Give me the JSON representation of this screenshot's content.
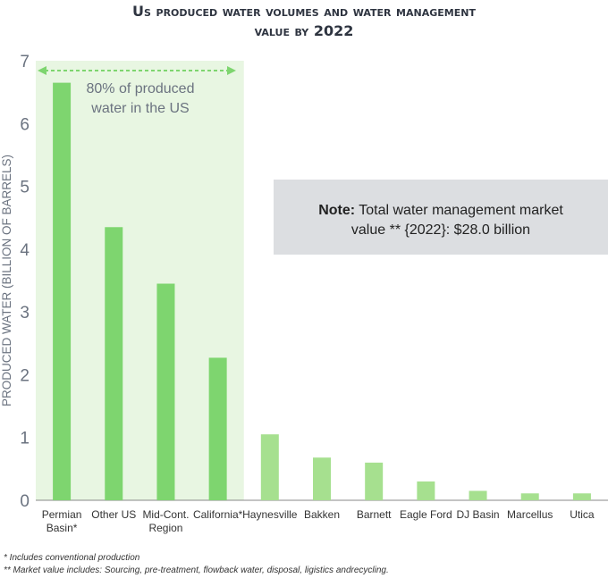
{
  "title": {
    "line1": "Us produced water volumes and water management",
    "line2": "value by 2022"
  },
  "highlight_label": {
    "line1": "80% of produced",
    "line2": "water in the US"
  },
  "note": {
    "bold": "Note:",
    "line1_rest": " Total water management market",
    "line2": "value ** {2022}: $28.0 billion"
  },
  "footnotes": [
    "* Includes conventional production",
    "** Market value includes: Sourcing, pre-treatment, flowback water, disposal, ligistics andrecycling."
  ],
  "chart_data": {
    "type": "bar",
    "ylabel": "PRODUCED WATER (BILLION OF BARRELS)",
    "xlabel": "",
    "ylim": [
      0,
      7
    ],
    "yticks": [
      "0",
      "1",
      "2",
      "3",
      "4",
      "5",
      "6",
      "7"
    ],
    "grid": false,
    "categories": [
      [
        "Permian",
        "Basin*"
      ],
      [
        "Other US"
      ],
      [
        "Mid-Cont.",
        "Region"
      ],
      [
        "California*"
      ],
      [
        "Haynesville"
      ],
      [
        "Bakken"
      ],
      [
        "Barnett"
      ],
      [
        "Eagle Ford"
      ],
      [
        "DJ Basin"
      ],
      [
        "Marcellus"
      ],
      [
        "Utica"
      ]
    ],
    "values": [
      6.65,
      4.35,
      3.45,
      2.27,
      1.05,
      0.68,
      0.6,
      0.3,
      0.15,
      0.11,
      0.11
    ],
    "highlighted_count": 4,
    "colors": {
      "highlight_bar": "#7ed56f",
      "other_bar": "#a6e08f",
      "highlight_band": "#e8f6e2",
      "arrow": "#7ed56f",
      "note_box": "#dcdee1"
    }
  }
}
